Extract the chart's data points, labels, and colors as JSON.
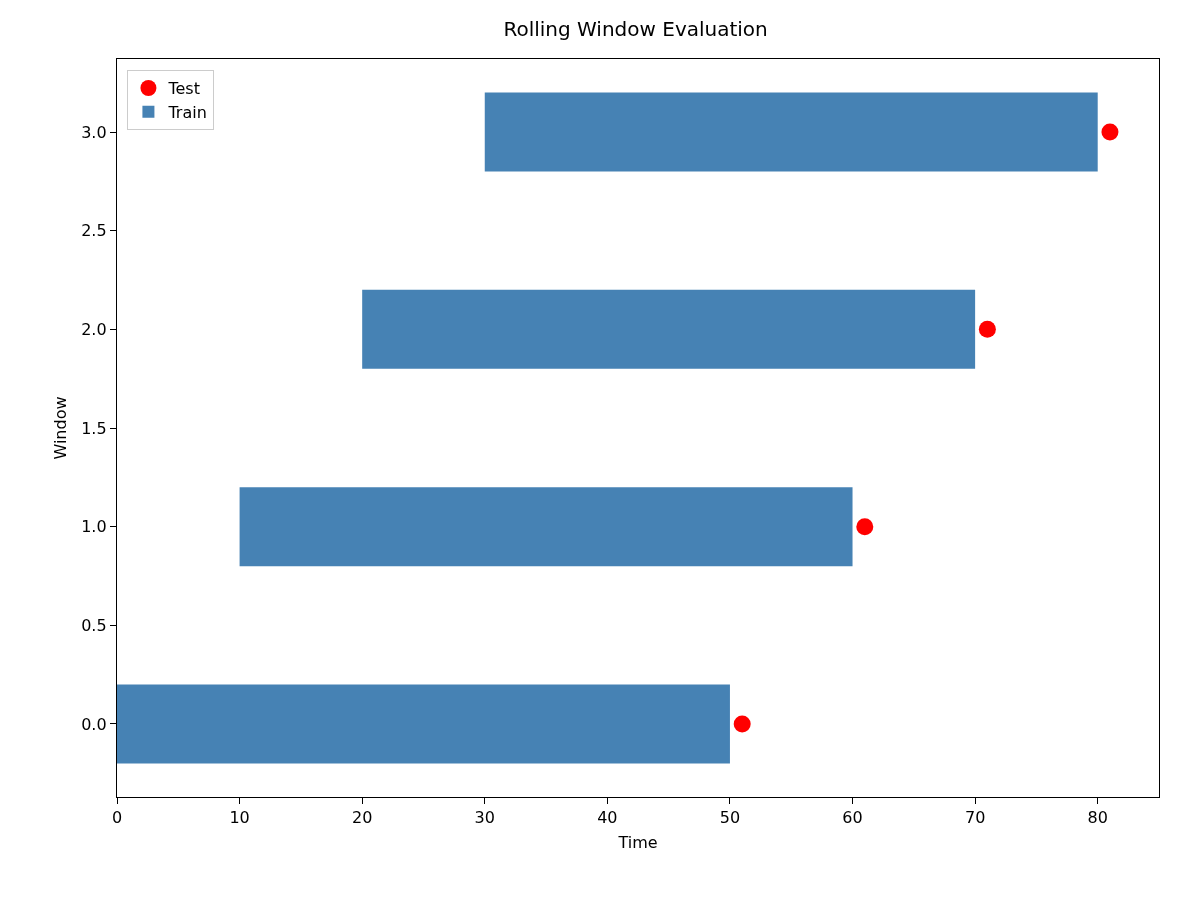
{
  "chart_data": {
    "type": "bar",
    "title": "Rolling Window Evaluation",
    "xlabel": "Time",
    "ylabel": "Window",
    "orientation": "horizontal",
    "x": [
      0,
      1,
      2,
      3
    ],
    "series": [
      {
        "name": "Test",
        "type": "scatter",
        "color": "#ff0000",
        "marker": "circle",
        "values": [
          51,
          61,
          71,
          81
        ]
      },
      {
        "name": "Train",
        "color": "#4682b4",
        "base": [
          0,
          10,
          20,
          30
        ],
        "values": [
          50,
          50,
          50,
          50
        ]
      }
    ],
    "xlim": [
      0,
      85
    ],
    "xticks": [
      0,
      10,
      20,
      30,
      40,
      50,
      60,
      70,
      80
    ],
    "ylim": [
      -0.37,
      3.37
    ],
    "yticks": [
      {
        "value": 0,
        "label": "0.0"
      },
      {
        "value": 0.5,
        "label": "0.5"
      },
      {
        "value": 1,
        "label": "1.0"
      },
      {
        "value": 1.5,
        "label": "1.5"
      },
      {
        "value": 2,
        "label": "2.0"
      },
      {
        "value": 2.5,
        "label": "2.5"
      },
      {
        "value": 3,
        "label": "3.0"
      }
    ],
    "grid": false,
    "legend": "top left"
  }
}
